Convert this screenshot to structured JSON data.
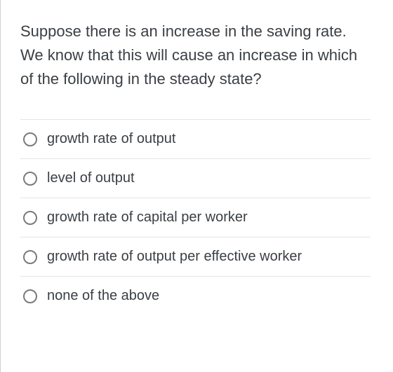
{
  "question": {
    "text": "Suppose there is an increase in the saving rate. We know that this will cause an increase in which of the following in the steady state?"
  },
  "options": [
    {
      "label": "growth rate of output"
    },
    {
      "label": "level of output"
    },
    {
      "label": "growth rate of capital per worker"
    },
    {
      "label": "growth rate of output per effective worker"
    },
    {
      "label": "none of the above"
    }
  ],
  "colors": {
    "text": "#3a3f44",
    "border": "#e5e5e5",
    "radio_border": "#7a7a7a",
    "background": "#ffffff"
  }
}
